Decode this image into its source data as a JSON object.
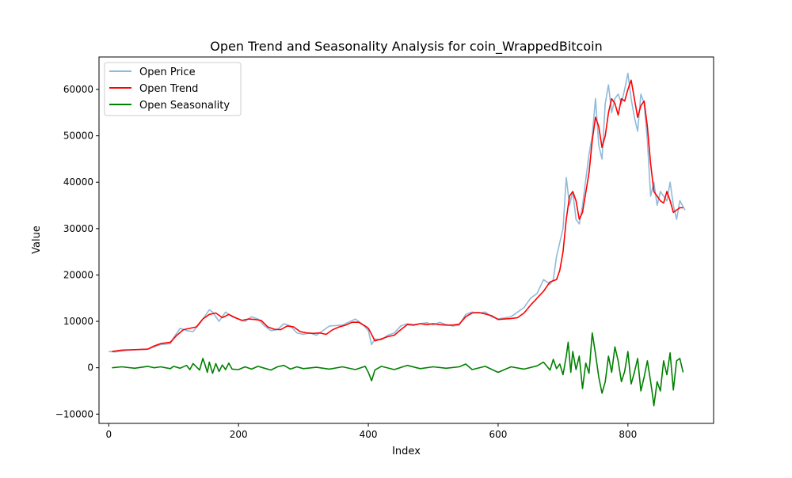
{
  "chart_data": {
    "type": "line",
    "title": "Open Trend and Seasonality Analysis for coin_WrappedBitcoin",
    "xlabel": "Index",
    "ylabel": "Value",
    "xlim": [
      -15,
      932
    ],
    "ylim": [
      -12000,
      67000
    ],
    "x_ticks": [
      0,
      200,
      400,
      600,
      800
    ],
    "x_tick_labels": [
      "0",
      "200",
      "400",
      "600",
      "800"
    ],
    "y_ticks": [
      -10000,
      0,
      10000,
      20000,
      30000,
      40000,
      50000,
      60000
    ],
    "y_tick_labels": [
      "−10000",
      "0",
      "10000",
      "20000",
      "30000",
      "40000",
      "50000",
      "60000"
    ],
    "grid": false,
    "legend_position": "upper-left",
    "series": [
      {
        "name": "Open Price",
        "color": "#1f77b4",
        "opacity": 0.5,
        "x": [
          0,
          10,
          30,
          60,
          80,
          95,
          100,
          110,
          120,
          130,
          140,
          150,
          155,
          160,
          165,
          170,
          180,
          190,
          200,
          210,
          220,
          230,
          240,
          250,
          260,
          270,
          280,
          290,
          300,
          310,
          320,
          340,
          360,
          380,
          390,
          400,
          405,
          410,
          420,
          430,
          440,
          450,
          460,
          470,
          480,
          490,
          500,
          510,
          520,
          530,
          540,
          550,
          560,
          570,
          580,
          590,
          600,
          620,
          640,
          650,
          660,
          670,
          680,
          685,
          690,
          700,
          705,
          710,
          715,
          720,
          725,
          730,
          740,
          745,
          750,
          755,
          760,
          765,
          770,
          775,
          780,
          785,
          790,
          795,
          800,
          805,
          810,
          815,
          820,
          825,
          830,
          835,
          840,
          845,
          850,
          860,
          865,
          870,
          875,
          880,
          888
        ],
        "y": [
          3500,
          3400,
          3800,
          4000,
          5000,
          5200,
          6500,
          8500,
          8000,
          7800,
          9500,
          11500,
          12500,
          12000,
          11000,
          10000,
          12000,
          11000,
          10500,
          10000,
          11000,
          10500,
          9000,
          8000,
          8200,
          9500,
          9000,
          7500,
          7200,
          7500,
          7000,
          9000,
          9200,
          10500,
          9500,
          8000,
          5000,
          6200,
          6000,
          7000,
          7500,
          9000,
          9500,
          9300,
          9500,
          9700,
          9200,
          9800,
          9300,
          9000,
          9200,
          11500,
          12000,
          11800,
          12000,
          11000,
          10500,
          11000,
          13000,
          15000,
          16000,
          19000,
          18000,
          19000,
          24000,
          30000,
          41000,
          35000,
          38000,
          32000,
          31000,
          35000,
          46000,
          50000,
          58000,
          48000,
          45000,
          57000,
          61000,
          55000,
          58000,
          59000,
          57000,
          60000,
          63500,
          58000,
          54000,
          51000,
          59000,
          57000,
          49000,
          37000,
          40000,
          35000,
          38000,
          36000,
          40000,
          35000,
          32000,
          36000,
          34000
        ]
      },
      {
        "name": "Open Trend",
        "color": "#ff0000",
        "x": [
          5,
          20,
          40,
          60,
          70,
          80,
          95,
          105,
          115,
          125,
          135,
          145,
          155,
          165,
          175,
          185,
          195,
          205,
          215,
          225,
          235,
          245,
          255,
          265,
          275,
          285,
          295,
          305,
          315,
          325,
          335,
          345,
          355,
          365,
          375,
          385,
          395,
          400,
          405,
          410,
          420,
          430,
          440,
          450,
          460,
          470,
          480,
          490,
          500,
          510,
          520,
          530,
          540,
          550,
          560,
          570,
          580,
          590,
          600,
          610,
          620,
          630,
          640,
          650,
          660,
          670,
          680,
          690,
          695,
          700,
          705,
          710,
          715,
          720,
          725,
          730,
          740,
          745,
          750,
          755,
          760,
          765,
          770,
          775,
          780,
          785,
          790,
          795,
          800,
          805,
          810,
          815,
          820,
          825,
          830,
          835,
          840,
          845,
          850,
          855,
          860,
          865,
          870,
          875,
          880,
          885
        ],
        "y": [
          3500,
          3800,
          3900,
          4000,
          4700,
          5200,
          5500,
          7000,
          8200,
          8500,
          8800,
          10500,
          11500,
          11800,
          10800,
          11500,
          10800,
          10200,
          10500,
          10400,
          10200,
          8800,
          8300,
          8200,
          9000,
          8800,
          7800,
          7500,
          7400,
          7500,
          7200,
          8200,
          8800,
          9200,
          9800,
          9800,
          9000,
          8500,
          7200,
          5800,
          6200,
          6700,
          7000,
          8200,
          9300,
          9200,
          9500,
          9300,
          9500,
          9300,
          9200,
          9200,
          9400,
          11000,
          11800,
          11900,
          11600,
          11200,
          10400,
          10500,
          10600,
          10800,
          11800,
          13500,
          15000,
          16500,
          18500,
          19000,
          21000,
          25000,
          32000,
          37000,
          38000,
          36000,
          32000,
          33500,
          42000,
          49000,
          54000,
          52000,
          47500,
          50000,
          55000,
          58000,
          57000,
          54500,
          58000,
          57500,
          60000,
          62000,
          58000,
          54000,
          56500,
          57500,
          52000,
          44000,
          38000,
          37000,
          36000,
          35500,
          38000,
          36000,
          33500,
          34000,
          34500,
          34500
        ]
      },
      {
        "name": "Open Seasonality",
        "color": "#008000",
        "x": [
          5,
          20,
          40,
          60,
          70,
          80,
          95,
          100,
          110,
          120,
          125,
          130,
          140,
          145,
          148,
          152,
          155,
          160,
          165,
          170,
          175,
          180,
          185,
          190,
          200,
          210,
          220,
          230,
          240,
          250,
          260,
          270,
          280,
          290,
          300,
          320,
          340,
          360,
          380,
          395,
          400,
          405,
          410,
          420,
          440,
          460,
          480,
          500,
          520,
          540,
          550,
          560,
          580,
          600,
          620,
          640,
          660,
          670,
          680,
          685,
          690,
          695,
          700,
          705,
          708,
          712,
          715,
          720,
          725,
          730,
          735,
          740,
          745,
          750,
          755,
          760,
          765,
          770,
          775,
          780,
          785,
          790,
          795,
          800,
          805,
          810,
          815,
          820,
          825,
          830,
          835,
          838,
          840,
          845,
          850,
          855,
          860,
          865,
          870,
          875,
          880,
          885
        ],
        "y": [
          0,
          200,
          -100,
          300,
          0,
          200,
          -200,
          300,
          -100,
          500,
          -400,
          900,
          -500,
          2000,
          800,
          -1000,
          1200,
          -1200,
          900,
          -800,
          600,
          -400,
          1000,
          -300,
          -400,
          200,
          -300,
          300,
          -100,
          -500,
          200,
          500,
          -300,
          200,
          -200,
          100,
          -300,
          200,
          -400,
          300,
          -1000,
          -2800,
          -500,
          300,
          -400,
          500,
          -200,
          200,
          -100,
          200,
          800,
          -400,
          300,
          -1000,
          200,
          -300,
          400,
          1200,
          -500,
          1800,
          -200,
          800,
          -1500,
          2500,
          5500,
          -1000,
          3500,
          -400,
          2500,
          -4500,
          1000,
          -1200,
          7500,
          3000,
          -2000,
          -5500,
          -3000,
          2500,
          -1000,
          4500,
          1500,
          -3000,
          -800,
          3500,
          -3500,
          -1000,
          2000,
          -5000,
          -2000,
          1500,
          -3000,
          -6000,
          -8200,
          -3000,
          -5000,
          1500,
          -1500,
          3200,
          -4800,
          1500,
          2000,
          -1000
        ]
      }
    ]
  }
}
